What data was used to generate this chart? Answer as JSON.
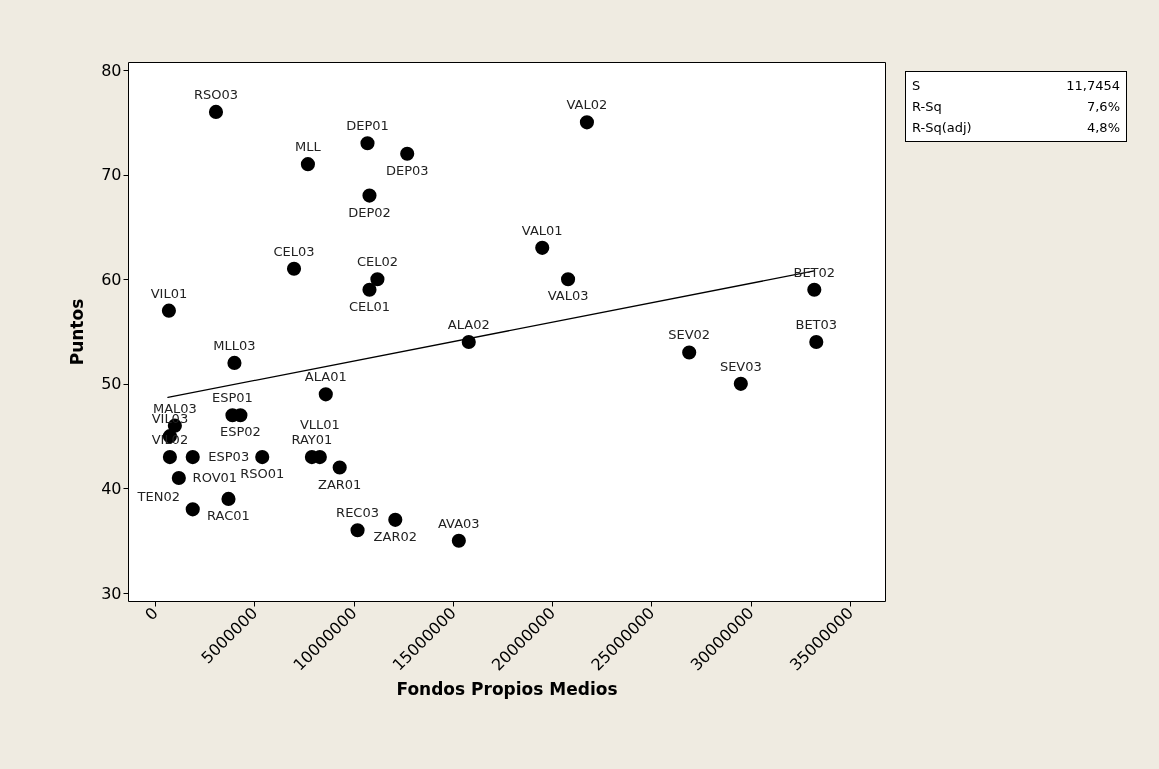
{
  "chart_data": {
    "type": "scatter",
    "xlabel": "Fondos Propios Medios",
    "ylabel": "Puntos",
    "x": [
      3070000,
      21750000,
      10700000,
      12700000,
      7700000,
      10800000,
      19500000,
      20800000,
      7000000,
      11200000,
      10800000,
      700000,
      33200000,
      15800000,
      33300000,
      26900000,
      4000000,
      29500000,
      8600000,
      3900000,
      4300000,
      1000000,
      750000,
      750000,
      1900000,
      5400000,
      7900000,
      8300000,
      9300000,
      1200000,
      3700000,
      1900000,
      10200000,
      12100000,
      15300000
    ],
    "series": [
      {
        "color": "#000000",
        "marker": "circle",
        "values": [
          76,
          75,
          73,
          72,
          71,
          68,
          63,
          60,
          61,
          60,
          59,
          57,
          59,
          54,
          54,
          53,
          52,
          50,
          49,
          47,
          47,
          46,
          45,
          43,
          43,
          43,
          43,
          43,
          42,
          41,
          39,
          38,
          36,
          37,
          35
        ]
      },
      {
        "type": "line",
        "color": "#000000",
        "x": [
          650000,
          33200000
        ],
        "values": [
          48.7,
          60.8
        ]
      }
    ],
    "annotations": [
      {
        "text": "RSO03",
        "x": 3070000,
        "y": 76
      },
      {
        "text": "VAL02",
        "x": 21750000,
        "y": 75
      },
      {
        "text": "DEP01",
        "x": 10700000,
        "y": 73
      },
      {
        "text": "DEP03",
        "x": 12700000,
        "y": 72
      },
      {
        "text": "MLL",
        "x": 7700000,
        "y": 71
      },
      {
        "text": "DEP02",
        "x": 10800000,
        "y": 68
      },
      {
        "text": "VAL01",
        "x": 19500000,
        "y": 63
      },
      {
        "text": "VAL03",
        "x": 20800000,
        "y": 60
      },
      {
        "text": "CEL03",
        "x": 7000000,
        "y": 61
      },
      {
        "text": "CEL02",
        "x": 11200000,
        "y": 60
      },
      {
        "text": "CEL01",
        "x": 10800000,
        "y": 59
      },
      {
        "text": "VIL01",
        "x": 700000,
        "y": 57
      },
      {
        "text": "BET02",
        "x": 33200000,
        "y": 59
      },
      {
        "text": "ALA02",
        "x": 15800000,
        "y": 54
      },
      {
        "text": "BET03",
        "x": 33300000,
        "y": 54
      },
      {
        "text": "SEV02",
        "x": 26900000,
        "y": 53
      },
      {
        "text": "MLL03",
        "x": 4000000,
        "y": 52
      },
      {
        "text": "SEV03",
        "x": 29500000,
        "y": 50
      },
      {
        "text": "ALA01",
        "x": 8600000,
        "y": 49
      },
      {
        "text": "ESP01",
        "x": 3900000,
        "y": 47
      },
      {
        "text": "ESP02",
        "x": 4300000,
        "y": 47
      },
      {
        "text": "MAL03",
        "x": 1000000,
        "y": 46
      },
      {
        "text": "VIL03",
        "x": 750000,
        "y": 45
      },
      {
        "text": "VIL02",
        "x": 750000,
        "y": 43
      },
      {
        "text": "ESP03",
        "x": 1900000,
        "y": 43
      },
      {
        "text": "RSO01",
        "x": 5400000,
        "y": 43
      },
      {
        "text": "RAY01",
        "x": 7900000,
        "y": 43
      },
      {
        "text": "VLL01",
        "x": 8300000,
        "y": 43
      },
      {
        "text": "ZAR01",
        "x": 9300000,
        "y": 42
      },
      {
        "text": "ROV01",
        "x": 1200000,
        "y": 41
      },
      {
        "text": "RAC01",
        "x": 3700000,
        "y": 39
      },
      {
        "text": "TEN02",
        "x": 1900000,
        "y": 38
      },
      {
        "text": "REC03",
        "x": 10200000,
        "y": 36
      },
      {
        "text": "ZAR02",
        "x": 12100000,
        "y": 37
      },
      {
        "text": "AVA03",
        "x": 15300000,
        "y": 35
      },
      "S",
      "11,7454",
      "R-Sq",
      "7,6%",
      "R-Sq(adj)",
      "4,8%"
    ],
    "xlim": [
      -1360000,
      36760000
    ],
    "xticks": [
      0,
      5000000,
      10000000,
      15000000,
      20000000,
      25000000,
      30000000,
      35000000
    ],
    "ylim": [
      29.24,
      80.77
    ],
    "yticks": [
      30,
      40,
      50,
      60,
      70,
      80
    ],
    "grid": false
  }
}
